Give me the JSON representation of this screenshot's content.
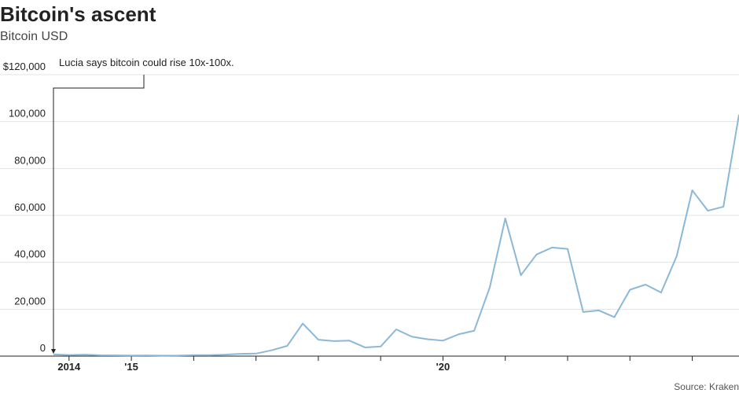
{
  "chart_data": {
    "type": "line",
    "title": "Bitcoin's ascent",
    "subtitle": "Bitcoin USD",
    "source": "Source: Kraken",
    "annotation": {
      "text": "Lucia says bitcoin could rise 10x-100x.",
      "x": 2013.75
    },
    "x": [
      2013.75,
      2014,
      2014.25,
      2014.5,
      2014.75,
      2015,
      2015.25,
      2015.5,
      2015.75,
      2016,
      2016.25,
      2016.5,
      2016.75,
      2017,
      2017.25,
      2017.5,
      2017.75,
      2018,
      2018.25,
      2018.5,
      2018.75,
      2019,
      2019.25,
      2019.5,
      2019.75,
      2020,
      2020.25,
      2020.5,
      2020.75,
      2021,
      2021.25,
      2021.5,
      2021.75,
      2022,
      2022.25,
      2022.5,
      2022.75,
      2023,
      2023.25,
      2023.5,
      2023.75,
      2024,
      2024.25,
      2024.5,
      2024.75
    ],
    "series": [
      {
        "name": "Bitcoin USD",
        "color": "#8cb8d8",
        "values": [
          750,
          460,
          630,
          390,
          320,
          240,
          280,
          230,
          250,
          420,
          430,
          610,
          960,
          1070,
          2500,
          4350,
          13900,
          7000,
          6400,
          6600,
          3700,
          4100,
          11400,
          8300,
          7200,
          6600,
          9300,
          10800,
          29200,
          58700,
          34500,
          43300,
          46300,
          45700,
          18800,
          19500,
          16600,
          28300,
          30500,
          27100,
          42600,
          70700,
          62000,
          63700,
          103000
        ]
      }
    ],
    "xlim": [
      2013.75,
      2024.75
    ],
    "xticks": [
      2014,
      {
        "value": 2015,
        "label": "'15"
      },
      {
        "value": 2020,
        "label": "'20"
      }
    ],
    "xminor": [
      2016,
      2017,
      2018,
      2019,
      2021,
      2022,
      2023,
      2024
    ],
    "ylim": [
      0,
      120000
    ],
    "yticks": [
      0,
      {
        "value": 20000,
        "label": "20,000"
      },
      {
        "value": 40000,
        "label": "40,000"
      },
      {
        "value": 60000,
        "label": "60,000"
      },
      {
        "value": 80000,
        "label": "80,000"
      },
      {
        "value": 100000,
        "label": "100,000"
      },
      {
        "value": 120000,
        "label": "$120,000"
      }
    ],
    "grid": true
  }
}
